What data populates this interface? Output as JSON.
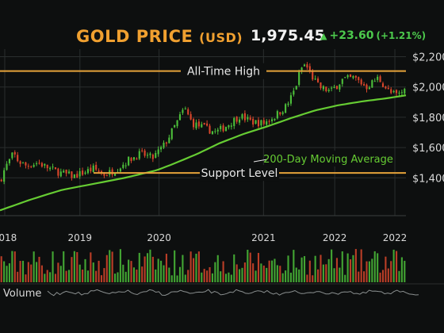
{
  "header": {
    "title": "GOLD PRICE",
    "title_unit": "(USD)",
    "price": "1,975.45",
    "change": "+23.60",
    "change_pct": "(+1.21%)",
    "up_icon": "triangle-up-icon"
  },
  "colors": {
    "background": "#0d0f0f",
    "grid": "#2a2e2e",
    "up": "#4cbf3a",
    "down": "#d9462b",
    "moving_average": "#66cc33",
    "annotation_line": "#e6a23a",
    "annotation_text": "#e8e8e8",
    "title": "#f0a030",
    "axis_text": "#d9d9d9"
  },
  "chart_data": {
    "type": "candlestick",
    "title": "GOLD PRICE (USD)",
    "xlabel": "",
    "ylabel": "",
    "ylim": [
      1150,
      2250
    ],
    "x_range": [
      2017.82,
      2022.95
    ],
    "y_ticks": [
      {
        "value": 2200,
        "label": "$2,200"
      },
      {
        "value": 2000,
        "label": "$2,000"
      },
      {
        "value": 1800,
        "label": "$1,800"
      },
      {
        "value": 1600,
        "label": "$1,600"
      },
      {
        "value": 1400,
        "label": "$1,400"
      }
    ],
    "x_ticks": [
      {
        "value": 2017.88,
        "label": "2018"
      },
      {
        "value": 2018.83,
        "label": "2019"
      },
      {
        "value": 2019.83,
        "label": "2020"
      },
      {
        "value": 2021.15,
        "label": "2021"
      },
      {
        "value": 2022.05,
        "label": "2022"
      },
      {
        "value": 2022.81,
        "label": "2022"
      }
    ],
    "grid": true,
    "annotations": {
      "all_time_high": {
        "value": 2105,
        "label": "All-Time High"
      },
      "support": {
        "value": 1432,
        "label": "Support Level"
      },
      "moving_average_label": "200-Day Moving Average"
    },
    "price_path": [
      [
        2017.82,
        1380
      ],
      [
        2017.88,
        1460
      ],
      [
        2017.99,
        1560
      ],
      [
        2018.05,
        1510
      ],
      [
        2018.15,
        1480
      ],
      [
        2018.3,
        1500
      ],
      [
        2018.45,
        1460
      ],
      [
        2018.6,
        1430
      ],
      [
        2018.75,
        1410
      ],
      [
        2018.9,
        1440
      ],
      [
        2019.0,
        1460
      ],
      [
        2019.15,
        1420
      ],
      [
        2019.3,
        1460
      ],
      [
        2019.45,
        1520
      ],
      [
        2019.6,
        1560
      ],
      [
        2019.75,
        1530
      ],
      [
        2019.9,
        1620
      ],
      [
        2020.05,
        1760
      ],
      [
        2020.15,
        1860
      ],
      [
        2020.25,
        1760
      ],
      [
        2020.4,
        1730
      ],
      [
        2020.55,
        1700
      ],
      [
        2020.7,
        1750
      ],
      [
        2020.85,
        1810
      ],
      [
        2021.0,
        1770
      ],
      [
        2021.15,
        1760
      ],
      [
        2021.3,
        1810
      ],
      [
        2021.45,
        1880
      ],
      [
        2021.55,
        1990
      ],
      [
        2021.62,
        2120
      ],
      [
        2021.68,
        2150
      ],
      [
        2021.75,
        2080
      ],
      [
        2021.85,
        2000
      ],
      [
        2022.0,
        1970
      ],
      [
        2022.15,
        2050
      ],
      [
        2022.3,
        2060
      ],
      [
        2022.45,
        2000
      ],
      [
        2022.6,
        2060
      ],
      [
        2022.75,
        1960
      ],
      [
        2022.85,
        1945
      ],
      [
        2022.95,
        1990
      ]
    ],
    "moving_average": [
      [
        2017.82,
        1185
      ],
      [
        2018.2,
        1255
      ],
      [
        2018.6,
        1320
      ],
      [
        2019.0,
        1360
      ],
      [
        2019.4,
        1400
      ],
      [
        2019.8,
        1450
      ],
      [
        2020.0,
        1490
      ],
      [
        2020.3,
        1555
      ],
      [
        2020.6,
        1630
      ],
      [
        2020.9,
        1690
      ],
      [
        2021.2,
        1740
      ],
      [
        2021.5,
        1795
      ],
      [
        2021.8,
        1845
      ],
      [
        2022.1,
        1880
      ],
      [
        2022.4,
        1905
      ],
      [
        2022.7,
        1925
      ],
      [
        2022.95,
        1945
      ]
    ],
    "volume_label": "Volume"
  }
}
